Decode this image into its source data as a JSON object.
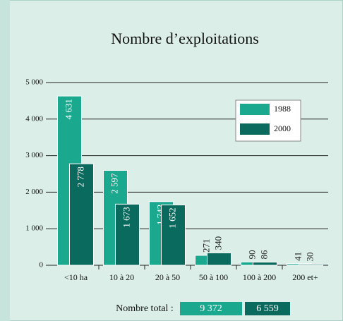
{
  "chart_data": {
    "type": "bar",
    "title": "Nombre d’exploitations",
    "categories": [
      "<10 ha",
      "10 à 20",
      "20 à 50",
      "50 à 100",
      "100 à 200",
      "200 et+"
    ],
    "series": [
      {
        "name": "1988",
        "color": "#1aa88e",
        "values": [
          4631,
          2597,
          1742,
          271,
          90,
          41
        ],
        "value_labels": [
          "4 631",
          "2 597",
          "1 742",
          "271",
          "90",
          "41"
        ]
      },
      {
        "name": "2000",
        "color": "#0b6a5e",
        "values": [
          2778,
          1673,
          1652,
          340,
          86,
          30
        ],
        "value_labels": [
          "2 778",
          "1 673",
          "1 652",
          "340",
          "86",
          "30"
        ]
      }
    ],
    "ylim": [
      0,
      5000
    ],
    "yticks": [
      0,
      {
        "value": 1000,
        "label": "1 000"
      },
      {
        "value": 2000,
        "label": "2 000"
      },
      {
        "value": 3000,
        "label": "3 000"
      },
      {
        "value": 4000,
        "label": "4 000"
      },
      {
        "value": 5000,
        "label": "5 000"
      }
    ],
    "grid": true,
    "legend": "upper right",
    "total_label": "Nombre total :",
    "totals": [
      {
        "value": 9372,
        "label": "9 372"
      },
      {
        "value": 6559,
        "label": "6 559"
      }
    ]
  }
}
